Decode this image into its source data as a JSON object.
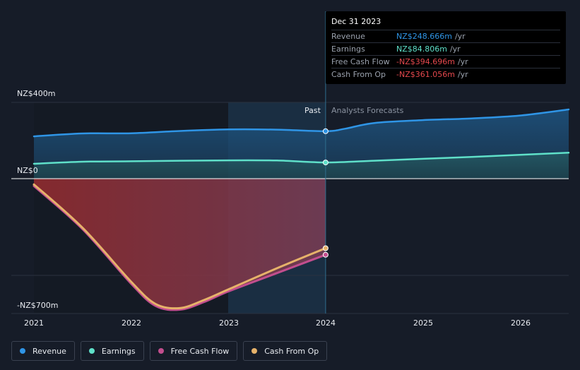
{
  "chart_data": {
    "type": "line",
    "title": "",
    "currency": "NZ$",
    "y_axis_labels": [
      "NZ$400m",
      "NZ$0",
      "-NZ$700m"
    ],
    "ylim": [
      -700,
      400
    ],
    "xlim": [
      2021.0,
      2026.5
    ],
    "x_ticks": [
      "2021",
      "2022",
      "2023",
      "2024",
      "2025",
      "2026"
    ],
    "divider_x": 2024.0,
    "past_label": "Past",
    "forecast_label": "Analysts Forecasts",
    "series": [
      {
        "name": "Revenue",
        "color": "#2f95e6",
        "points": [
          [
            2021.0,
            222
          ],
          [
            2021.5,
            237
          ],
          [
            2022.0,
            238
          ],
          [
            2022.5,
            250
          ],
          [
            2023.0,
            258
          ],
          [
            2023.5,
            257
          ],
          [
            2024.0,
            249
          ],
          [
            2024.2,
            262
          ],
          [
            2024.5,
            292
          ],
          [
            2025.0,
            307
          ],
          [
            2025.5,
            316
          ],
          [
            2026.0,
            331
          ],
          [
            2026.5,
            363
          ]
        ]
      },
      {
        "name": "Earnings",
        "color": "#5fe0c9",
        "points": [
          [
            2021.0,
            78
          ],
          [
            2021.5,
            89
          ],
          [
            2022.0,
            91
          ],
          [
            2022.5,
            94
          ],
          [
            2023.0,
            96
          ],
          [
            2023.5,
            95
          ],
          [
            2024.0,
            85
          ],
          [
            2024.5,
            94
          ],
          [
            2025.0,
            104
          ],
          [
            2025.5,
            114
          ],
          [
            2026.0,
            125
          ],
          [
            2026.5,
            136
          ]
        ]
      },
      {
        "name": "Free Cash Flow",
        "color": "#c24e8e",
        "points": [
          [
            2021.0,
            -38
          ],
          [
            2021.5,
            -262
          ],
          [
            2022.0,
            -545
          ],
          [
            2022.25,
            -660
          ],
          [
            2022.5,
            -680
          ],
          [
            2022.75,
            -640
          ],
          [
            2023.0,
            -585
          ],
          [
            2023.5,
            -490
          ],
          [
            2024.0,
            -395
          ]
        ]
      },
      {
        "name": "Cash From Op",
        "color": "#e6b26a",
        "points": [
          [
            2021.0,
            -30
          ],
          [
            2021.5,
            -255
          ],
          [
            2022.0,
            -535
          ],
          [
            2022.25,
            -650
          ],
          [
            2022.5,
            -672
          ],
          [
            2022.75,
            -630
          ],
          [
            2023.0,
            -575
          ],
          [
            2023.5,
            -465
          ],
          [
            2024.0,
            -361
          ]
        ]
      }
    ]
  },
  "tooltip": {
    "date": "Dec 31 2023",
    "rows": [
      {
        "label": "Revenue",
        "value": "NZ$248.666m",
        "unit": "/yr",
        "color": "#2f95e6"
      },
      {
        "label": "Earnings",
        "value": "NZ$84.806m",
        "unit": "/yr",
        "color": "#5fe0c9"
      },
      {
        "label": "Free Cash Flow",
        "value": "-NZ$394.696m",
        "unit": "/yr",
        "color": "#e5484d"
      },
      {
        "label": "Cash From Op",
        "value": "-NZ$361.056m",
        "unit": "/yr",
        "color": "#e5484d"
      }
    ]
  },
  "legend": [
    {
      "label": "Revenue",
      "color": "#2f95e6"
    },
    {
      "label": "Earnings",
      "color": "#5fe0c9"
    },
    {
      "label": "Free Cash Flow",
      "color": "#c24e8e"
    },
    {
      "label": "Cash From Op",
      "color": "#e6b26a"
    }
  ]
}
